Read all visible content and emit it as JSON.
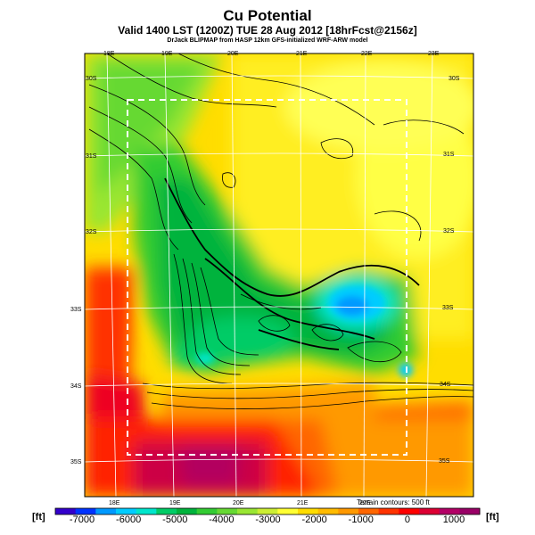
{
  "title": "Cu Potential",
  "subtitle": "Valid 1400 LST (1200Z) TUE 28 Aug 2012 [18hrFcst@2156z]",
  "credit": "DrJack BLIPMAP from HASP 12km GFS-initialized WRF-ARW model",
  "terrain_note": "Terrain contours: 500 ft",
  "lon_labels_top": [
    "18E",
    "19E",
    "20E",
    "21E",
    "22E",
    "23E"
  ],
  "lon_labels_bottom": [
    "18E",
    "19E",
    "20E",
    "21E",
    "22E"
  ],
  "lat_labels_left": [
    "30S",
    "31S",
    "32S",
    "33S",
    "34S",
    "35S"
  ],
  "lat_labels_right": [
    "30S",
    "31S",
    "32S",
    "33S",
    "34S",
    "35S"
  ],
  "colorbar": {
    "unit_left": "[ft]",
    "unit_right": "[ft]",
    "tick_labels": [
      "-7000",
      "-6000",
      "-5000",
      "-4000",
      "-3000",
      "-2000",
      "-1000",
      "0",
      "1000"
    ],
    "colors": [
      "#3300cc",
      "#0033ff",
      "#0099ff",
      "#00ccff",
      "#00e6cc",
      "#00cc66",
      "#00b33c",
      "#33cc33",
      "#66d933",
      "#99e633",
      "#ccee33",
      "#ffff33",
      "#ffdd00",
      "#ffbb00",
      "#ff9900",
      "#ff6600",
      "#ff3300",
      "#ff0000",
      "#dd0033",
      "#b30066",
      "#990066"
    ]
  },
  "colors": {
    "region_box": "#ffffff",
    "contour": "#000000",
    "graticule": "#ffffff"
  }
}
